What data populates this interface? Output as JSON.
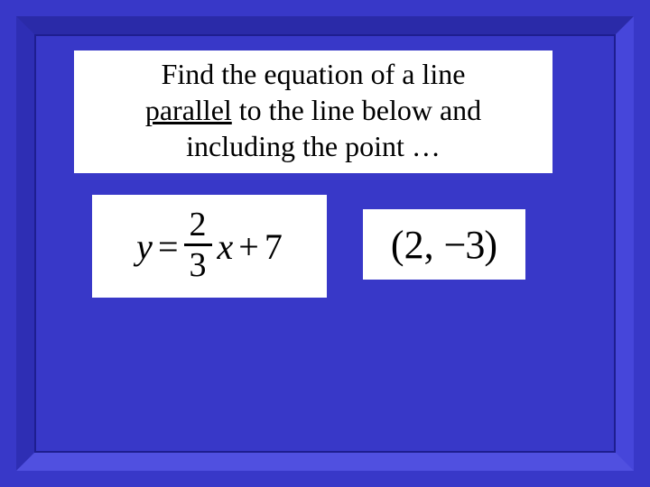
{
  "colors": {
    "slide_bg": "#3838c8",
    "bevel_top": "#2a2aa8",
    "bevel_left": "#2e2eb4",
    "bevel_right": "#4646da",
    "bevel_bottom": "#5050e0",
    "bevel_line": "#1e1e90",
    "box_bg": "#ffffff",
    "text": "#000000"
  },
  "typography": {
    "family": "Times New Roman",
    "question_fontsize_pt": 24,
    "equation_fontsize_pt": 30,
    "point_fontsize_pt": 33
  },
  "question": {
    "line1": "Find the equation of a line",
    "underlined_word": "parallel",
    "line2_after_underline": " to the line below and",
    "line3": "including the point …"
  },
  "equation": {
    "lhs_var": "y",
    "equals": "=",
    "fraction": {
      "numerator": "2",
      "denominator": "3"
    },
    "rhs_var": "x",
    "plus": "+",
    "constant": "7"
  },
  "point": {
    "open": "(",
    "x": "2",
    "comma": ",",
    "y": "−3",
    "close": ")"
  }
}
